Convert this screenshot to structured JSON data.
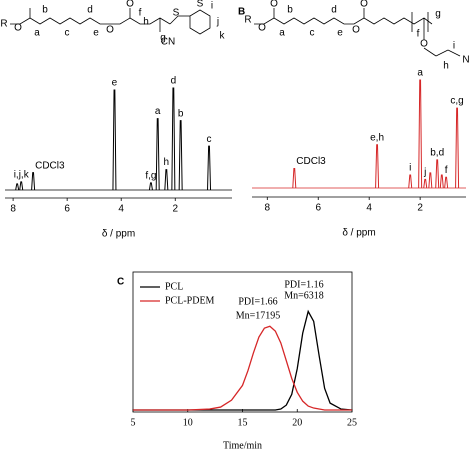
{
  "chart_data": [
    {
      "type": "nmr",
      "x_label": "δ / ppm",
      "xlim": [
        8.3,
        -0.1
      ],
      "xticks": [
        8,
        6,
        4,
        2
      ],
      "color": "#000000",
      "structure_labels": [
        "R",
        "O",
        "b",
        "d",
        "a",
        "c",
        "e",
        "O",
        "O",
        "f",
        "h",
        "g",
        "S",
        "CN",
        "S",
        "i",
        "j",
        "k"
      ],
      "x": [
        7.85,
        7.7,
        7.26,
        4.25,
        2.9,
        2.65,
        2.33,
        2.07,
        1.8,
        0.75
      ],
      "values": [
        6,
        8,
        17,
        98,
        7,
        70,
        20,
        100,
        68,
        43
      ],
      "peak_labels": [
        null,
        "i,j,k",
        "CDCl3",
        "e",
        "f,g",
        "a",
        "h",
        "d",
        "b",
        "c"
      ]
    },
    {
      "type": "nmr",
      "panel_label": "B",
      "x_label": "δ / ppm",
      "xlim": [
        8.6,
        0.2
      ],
      "xticks": [
        8,
        6,
        4,
        2
      ],
      "color": "#d62728",
      "structure_labels": [
        "R",
        "O",
        "O",
        "b",
        "d",
        "a",
        "c",
        "e",
        "O",
        "O",
        "f",
        "g",
        "h",
        "i",
        "O",
        "N"
      ],
      "x": [
        6.94,
        3.69,
        2.39,
        2.0,
        1.8,
        1.6,
        1.33,
        1.15,
        0.98,
        0.55
      ],
      "values": [
        18,
        40,
        12,
        100,
        8,
        14,
        26,
        12,
        10,
        74
      ],
      "peak_labels": [
        "CDCl3",
        "e,h",
        "i",
        "a",
        "j",
        null,
        "b,d",
        null,
        "f",
        "c,g"
      ]
    },
    {
      "type": "line",
      "panel_label": "C",
      "x_label": "Time/min",
      "xlim": [
        5,
        25
      ],
      "xticks": [
        5,
        10,
        15,
        20,
        25
      ],
      "ylim": [
        -0.02,
        1.4
      ],
      "annotations": [
        "PDI=1.66",
        "Mn=17195",
        "PDI=1.16",
        "Mn=6318"
      ],
      "x": [
        5,
        10,
        12,
        13,
        14,
        15,
        15.5,
        16,
        16.5,
        17,
        17.5,
        18,
        18.5,
        19,
        19.5,
        20,
        20.5,
        21,
        21.5,
        22,
        22.5,
        23,
        24,
        25
      ],
      "series": [
        {
          "name": "PCL",
          "color": "#000000",
          "values": [
            0,
            0,
            0,
            0,
            0,
            0,
            0,
            0,
            0,
            0,
            0,
            0,
            0.01,
            0.05,
            0.16,
            0.42,
            0.78,
            1.0,
            0.9,
            0.55,
            0.22,
            0.07,
            0.01,
            0
          ]
        },
        {
          "name": "PCL-PDEM",
          "color": "#d62728",
          "values": [
            0,
            0,
            0.01,
            0.03,
            0.1,
            0.25,
            0.4,
            0.58,
            0.74,
            0.83,
            0.85,
            0.8,
            0.68,
            0.5,
            0.32,
            0.18,
            0.09,
            0.04,
            0.02,
            0.01,
            0,
            0,
            0,
            0
          ]
        }
      ]
    }
  ]
}
